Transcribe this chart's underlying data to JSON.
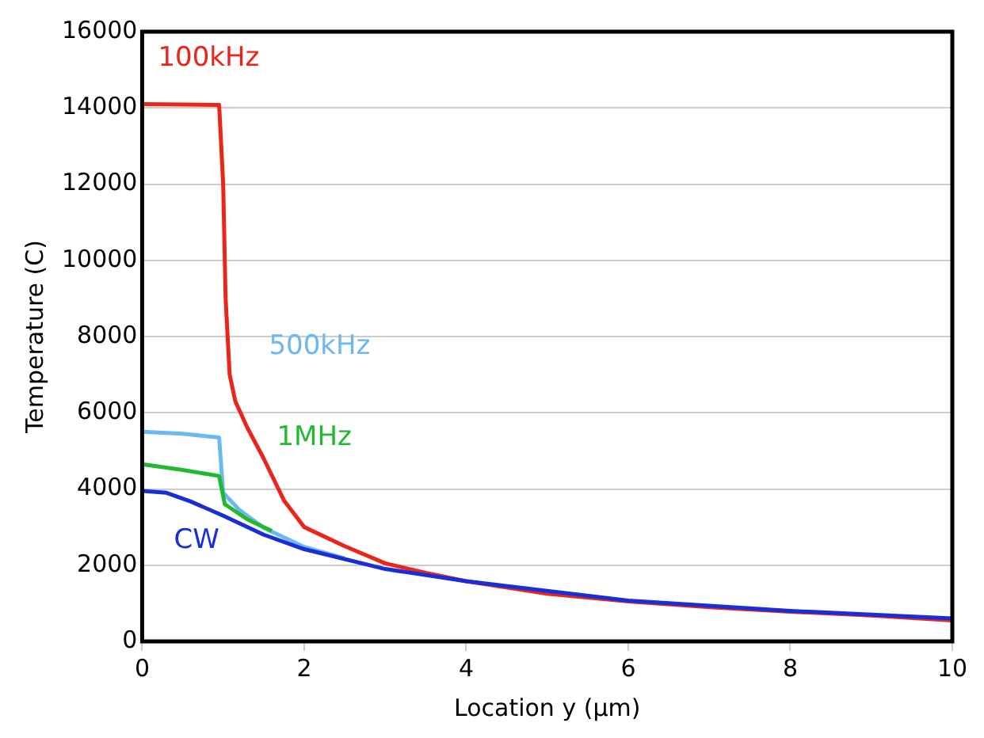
{
  "chart_data": {
    "type": "line",
    "xlabel": "Location y (µm)",
    "ylabel": "Temperature (C)",
    "xlim": [
      0,
      10
    ],
    "xticks": [
      0,
      2,
      4,
      6,
      8,
      10
    ],
    "ylim": [
      0,
      16000
    ],
    "yticks": [
      0,
      2000,
      4000,
      6000,
      8000,
      10000,
      12000,
      14000,
      16000
    ],
    "grid": "y",
    "legend": false,
    "marker": "none",
    "line_style": "solid",
    "series": [
      {
        "name": "100kHz",
        "color": "#e8261b",
        "x": [
          0,
          0.95,
          1.0,
          1.03,
          1.08,
          1.15,
          1.3,
          1.5,
          1.75,
          2,
          2.5,
          3,
          3.5,
          4,
          5,
          6,
          7,
          8,
          9,
          10
        ],
        "values": [
          14100,
          14080,
          12000,
          9000,
          7000,
          6300,
          5600,
          4800,
          3700,
          3000,
          2500,
          2050,
          1800,
          1580,
          1250,
          1050,
          900,
          780,
          680,
          550
        ]
      },
      {
        "name": "500kHz",
        "color": "#6cb8f0",
        "x": [
          0,
          0.5,
          0.95,
          1.0,
          1.2,
          1.5,
          2,
          2.5
        ],
        "values": [
          5500,
          5450,
          5350,
          3900,
          3450,
          2980,
          2480,
          2180
        ]
      },
      {
        "name": "1MHz",
        "color": "#22b830",
        "x": [
          0,
          0.5,
          0.95,
          1.02,
          1.3,
          1.6
        ],
        "values": [
          4650,
          4500,
          4340,
          3600,
          3200,
          2900
        ]
      },
      {
        "name": "CW",
        "color": "#1a2ed8",
        "x": [
          0,
          0.3,
          0.6,
          1,
          1.5,
          2,
          3,
          4,
          6,
          8,
          10
        ],
        "values": [
          3950,
          3900,
          3670,
          3300,
          2800,
          2420,
          1900,
          1580,
          1070,
          800,
          600
        ]
      }
    ]
  }
}
